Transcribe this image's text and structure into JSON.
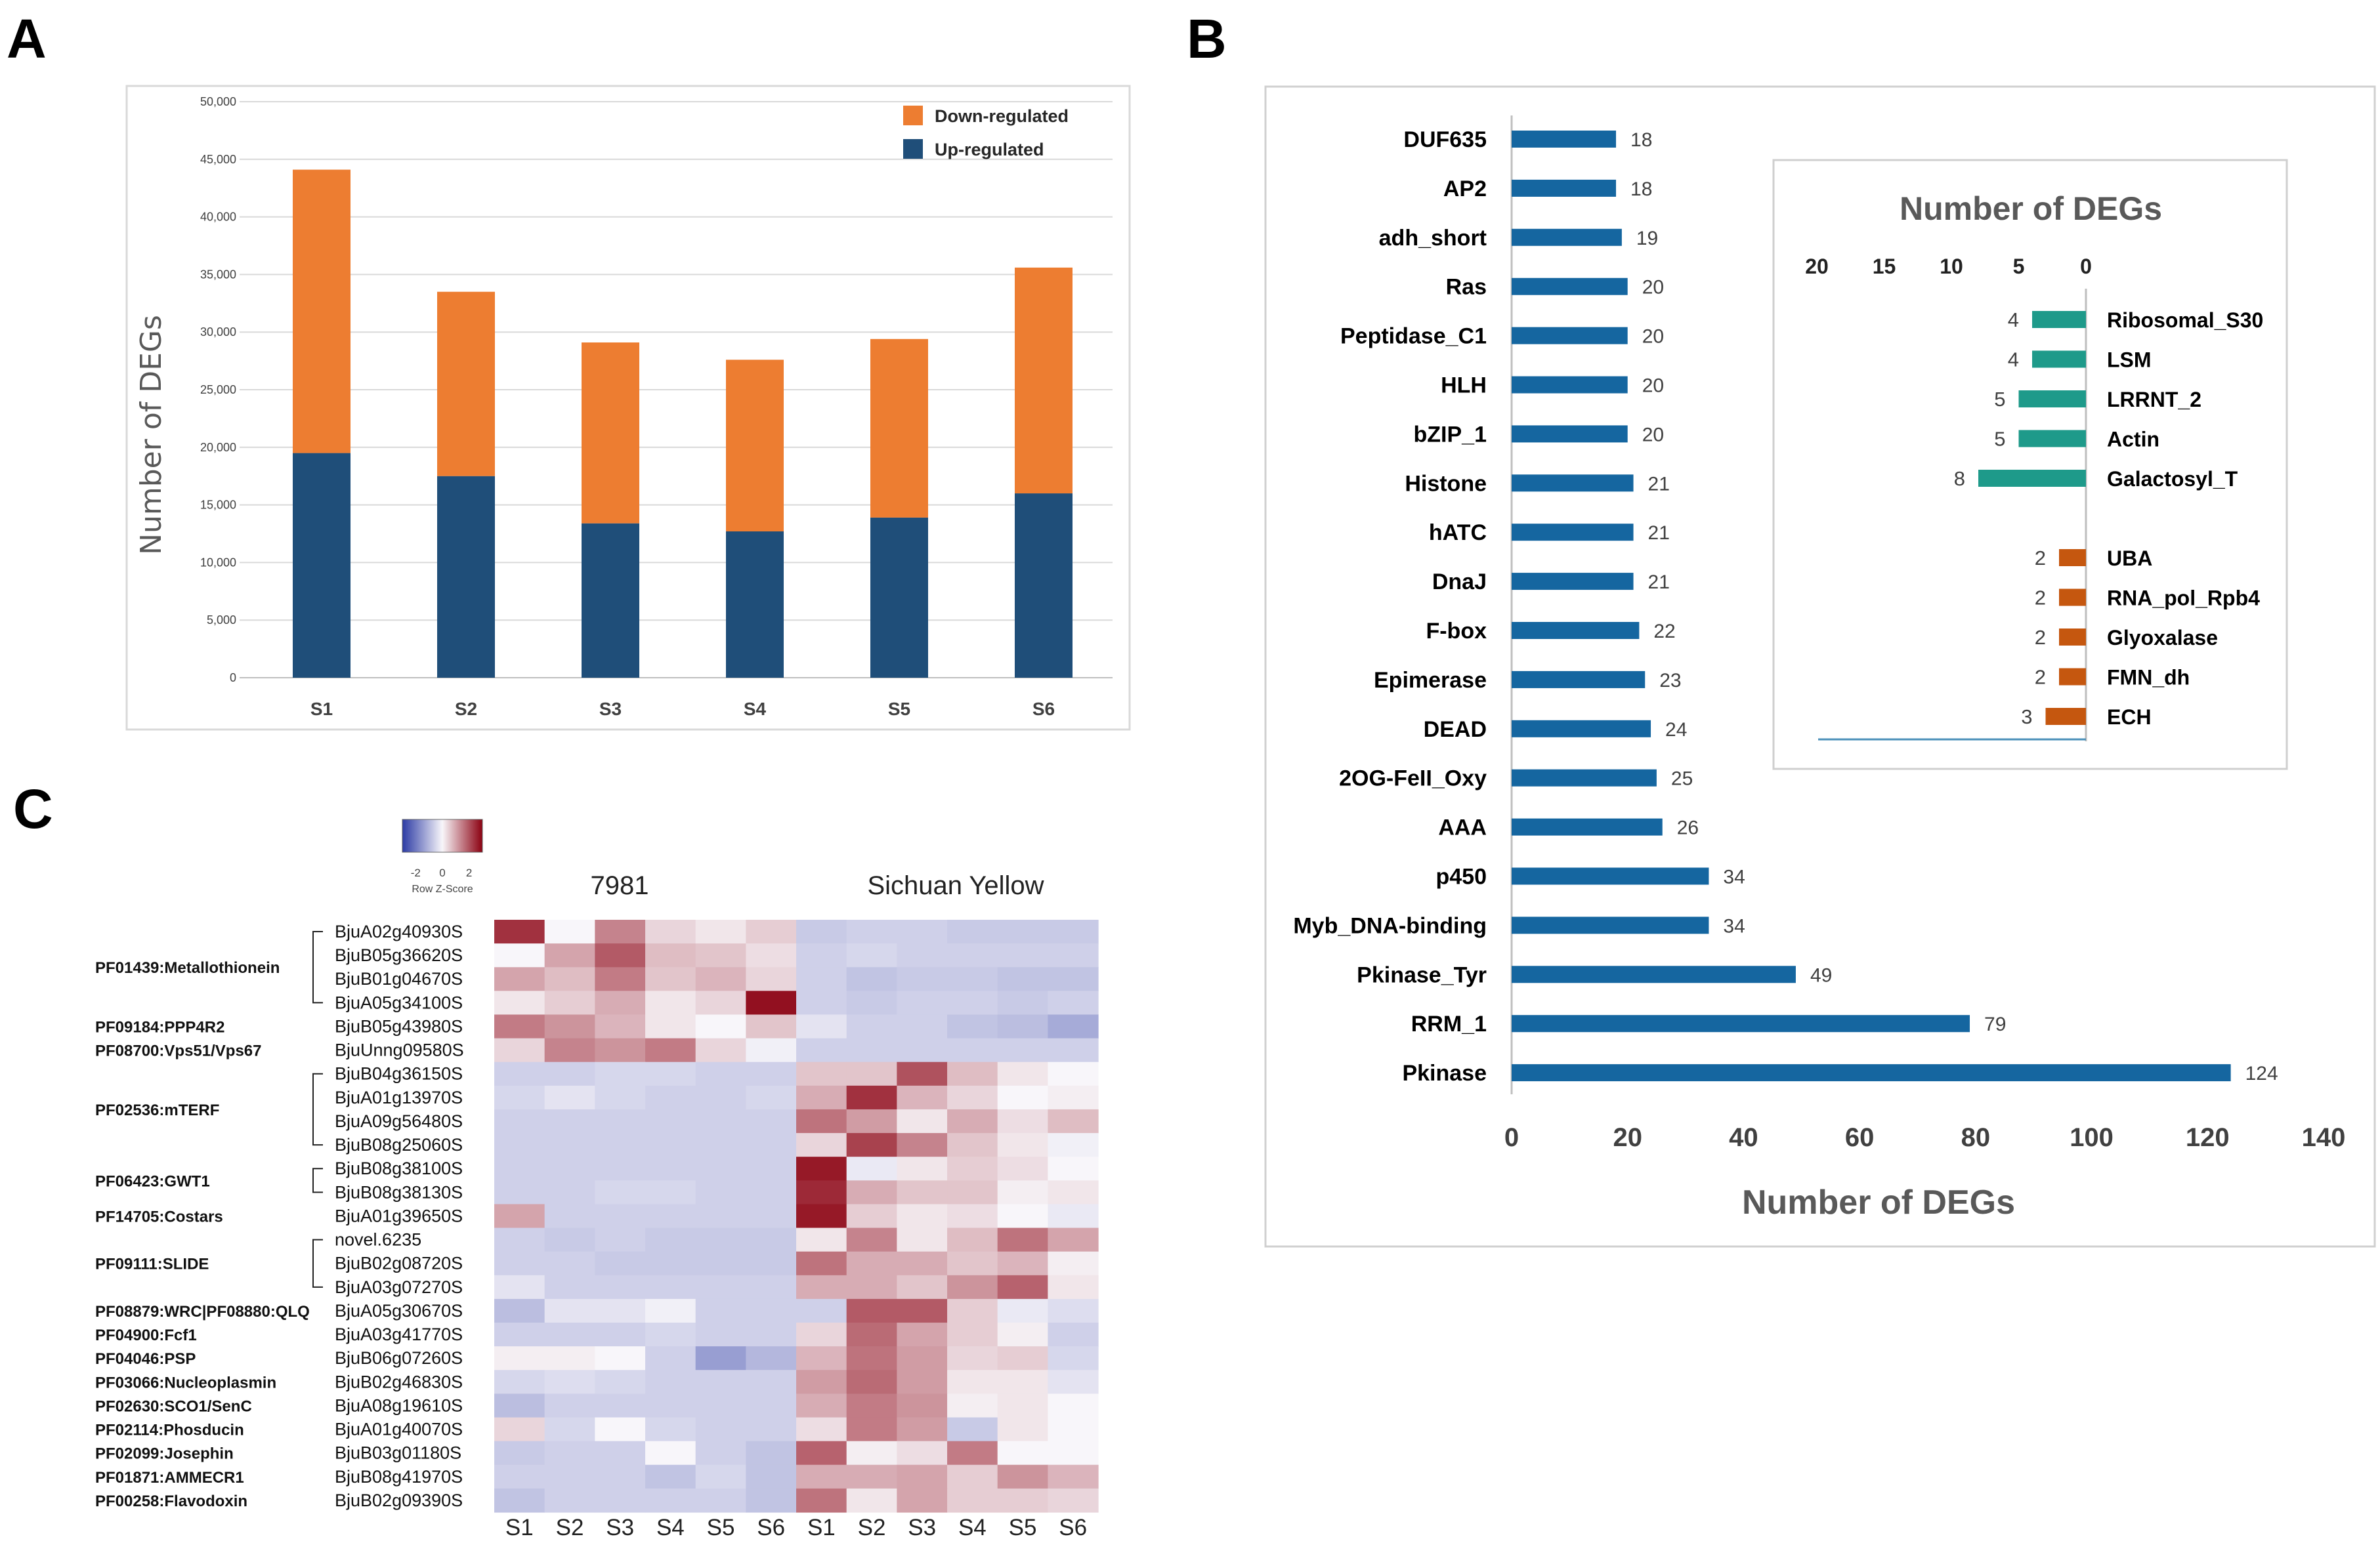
{
  "panels": {
    "a": "A",
    "b": "B",
    "c": "C"
  },
  "colors": {
    "down": "#ED7D31",
    "up": "#1F4E79",
    "b_bar": "#1566A0",
    "inset_up": "#1E9A8A",
    "inset_down": "#C5570F",
    "axis_text": "#404040",
    "grid": "#D9D9D9",
    "hm_low": "#2B3AA4",
    "hm_mid": "#F8F6FA",
    "hm_high": "#8B0010"
  },
  "chart_data": [
    {
      "id": "A",
      "type": "bar",
      "stacked": true,
      "title": "",
      "xlabel": "",
      "ylabel": "Number of DEGs",
      "categories": [
        "S1",
        "S2",
        "S3",
        "S4",
        "S5",
        "S6"
      ],
      "series": [
        {
          "name": "Up-regulated",
          "values": [
            19500,
            17500,
            13400,
            12700,
            13900,
            16000
          ]
        },
        {
          "name": "Down-regulated",
          "values": [
            24600,
            16000,
            15700,
            14900,
            15500,
            19600
          ]
        }
      ],
      "legend": [
        "Down-regulated",
        "Up-regulated"
      ],
      "legend_position": "top-right",
      "ylim": [
        0,
        50000
      ],
      "yticks": [
        "0",
        "5,000",
        "10,000",
        "15,000",
        "20,000",
        "25,000",
        "30,000",
        "35,000",
        "40,000",
        "45,000",
        "50,000"
      ],
      "grid": true
    },
    {
      "id": "B",
      "type": "bar",
      "orientation": "horizontal",
      "title": "",
      "xlabel": "Number of DEGs",
      "categories": [
        "DUF635",
        "AP2",
        "adh_short",
        "Ras",
        "Peptidase_C1",
        "HLH",
        "bZIP_1",
        "Histone",
        "hATC",
        "DnaJ",
        "F-box",
        "Epimerase",
        "DEAD",
        "2OG-FeII_Oxy",
        "AAA",
        "p450",
        "Myb_DNA-binding",
        "Pkinase_Tyr",
        "RRM_1",
        "Pkinase"
      ],
      "values": [
        18,
        18,
        19,
        20,
        20,
        20,
        20,
        21,
        21,
        21,
        22,
        23,
        24,
        25,
        26,
        34,
        34,
        49,
        79,
        124
      ],
      "value_labels": [
        "18",
        "18",
        "19",
        "20",
        "20",
        "20",
        "20",
        "21",
        "21",
        "21",
        "22",
        "23",
        "24",
        "25",
        "26",
        "34",
        "34",
        "49",
        "79",
        "124"
      ],
      "xlim": [
        0,
        140
      ],
      "xticks": [
        "0",
        "20",
        "40",
        "60",
        "80",
        "100",
        "120",
        "140"
      ],
      "grid": false
    },
    {
      "id": "B-inset",
      "type": "bar",
      "orientation": "horizontal",
      "reversed_x": true,
      "title": "Number of DEGs",
      "xlim": [
        0,
        20
      ],
      "xticks": [
        "20",
        "15",
        "10",
        "5",
        "0"
      ],
      "series": [
        {
          "name": "group1",
          "categories": [
            "Ribosomal_S30",
            "LSM",
            "LRRNT_2",
            "Actin",
            "Galactosyl_T"
          ],
          "values": [
            4,
            4,
            5,
            5,
            8
          ],
          "value_labels": [
            "4",
            "4",
            "5",
            "5",
            "8"
          ]
        },
        {
          "name": "group2",
          "categories": [
            "UBA",
            "RNA_pol_Rpb4",
            "Glyoxalase",
            "FMN_dh",
            "ECH"
          ],
          "values": [
            2,
            2,
            2,
            2,
            3
          ],
          "value_labels": [
            "2",
            "2",
            "2",
            "2",
            "3"
          ]
        }
      ]
    },
    {
      "id": "C",
      "type": "heatmap",
      "title": "",
      "color_key": {
        "ticks": [
          "-2",
          "0",
          "2"
        ],
        "label": "Row Z-Score"
      },
      "column_groups": [
        "7981",
        "Sichuan Yellow"
      ],
      "columns": [
        "S1",
        "S2",
        "S3",
        "S4",
        "S5",
        "S6",
        "S1",
        "S2",
        "S3",
        "S4",
        "S5",
        "S6"
      ],
      "rows": [
        "BjuA02g40930S",
        "BjuB05g36620S",
        "BjuB01g04670S",
        "BjuA05g34100S",
        "BjuB05g43980S",
        "BjuUnng09580S",
        "BjuB04g36150S",
        "BjuA01g13970S",
        "BjuA09g56480S",
        "BjuB08g25060S",
        "BjuB08g38100S",
        "BjuB08g38130S",
        "BjuA01g39650S",
        "novel.6235",
        "BjuB02g08720S",
        "BjuA03g07270S",
        "BjuA05g30670S",
        "BjuA03g41770S",
        "BjuB06g07260S",
        "BjuB02g46830S",
        "BjuA08g19610S",
        "BjuA01g40070S",
        "BjuB03g01180S",
        "BjuB08g41970S",
        "BjuB02g09390S"
      ],
      "families": [
        {
          "name": "PF01439:Metallothionein",
          "rows": [
            0,
            3
          ]
        },
        {
          "name": "PF09184:PPP4R2",
          "rows": [
            4,
            4
          ]
        },
        {
          "name": "PF08700:Vps51/Vps67",
          "rows": [
            5,
            5
          ]
        },
        {
          "name": "PF02536:mTERF",
          "rows": [
            6,
            9
          ]
        },
        {
          "name": "PF06423:GWT1",
          "rows": [
            10,
            11
          ]
        },
        {
          "name": "PF14705:Costars",
          "rows": [
            12,
            12
          ]
        },
        {
          "name": "PF09111:SLIDE",
          "rows": [
            13,
            15
          ]
        },
        {
          "name": "PF08879:WRC|PF08880:QLQ",
          "rows": [
            16,
            16
          ]
        },
        {
          "name": "PF04900:Fcf1",
          "rows": [
            17,
            17
          ]
        },
        {
          "name": "PF04046:PSP",
          "rows": [
            18,
            18
          ]
        },
        {
          "name": "PF03066:Nucleoplasmin",
          "rows": [
            19,
            19
          ]
        },
        {
          "name": "PF02630:SCO1/SenC",
          "rows": [
            20,
            20
          ]
        },
        {
          "name": "PF02114:Phosducin",
          "rows": [
            21,
            21
          ]
        },
        {
          "name": "PF02099:Josephin",
          "rows": [
            22,
            22
          ]
        },
        {
          "name": "PF01871:AMMECR1",
          "rows": [
            23,
            23
          ]
        },
        {
          "name": "PF00258:Flavodoxin",
          "rows": [
            24,
            24
          ]
        }
      ],
      "values": [
        [
          2.4,
          0.0,
          1.4,
          0.4,
          0.2,
          0.5,
          -0.7,
          -0.6,
          -0.6,
          -0.7,
          -0.7,
          -0.7
        ],
        [
          0.0,
          1.0,
          1.9,
          0.7,
          0.6,
          0.3,
          -0.6,
          -0.5,
          -0.6,
          -0.6,
          -0.6,
          -0.6
        ],
        [
          1.0,
          0.7,
          1.5,
          0.6,
          0.8,
          0.4,
          -0.6,
          -0.8,
          -0.7,
          -0.7,
          -0.8,
          -0.8
        ],
        [
          0.2,
          0.5,
          0.9,
          0.2,
          0.4,
          2.8,
          -0.6,
          -0.7,
          -0.6,
          -0.6,
          -0.7,
          -0.6
        ],
        [
          1.5,
          1.2,
          0.8,
          0.2,
          0.0,
          0.6,
          -0.3,
          -0.6,
          -0.6,
          -0.8,
          -0.9,
          -1.2
        ],
        [
          0.4,
          1.4,
          1.2,
          1.5,
          0.4,
          -0.1,
          -0.6,
          -0.6,
          -0.6,
          -0.6,
          -0.6,
          -0.6
        ],
        [
          -0.6,
          -0.6,
          -0.5,
          -0.5,
          -0.6,
          -0.6,
          0.6,
          0.6,
          2.0,
          0.7,
          0.2,
          0.0
        ],
        [
          -0.5,
          -0.3,
          -0.5,
          -0.6,
          -0.6,
          -0.5,
          0.9,
          2.4,
          0.8,
          0.4,
          0.0,
          0.1
        ],
        [
          -0.6,
          -0.6,
          -0.6,
          -0.6,
          -0.6,
          -0.6,
          1.6,
          1.1,
          0.2,
          0.9,
          0.3,
          0.7
        ],
        [
          -0.6,
          -0.6,
          -0.6,
          -0.6,
          -0.6,
          -0.6,
          0.4,
          2.2,
          1.4,
          0.6,
          0.2,
          -0.1
        ],
        [
          -0.6,
          -0.6,
          -0.6,
          -0.6,
          -0.6,
          -0.6,
          2.7,
          -0.2,
          0.2,
          0.5,
          0.3,
          0.0
        ],
        [
          -0.6,
          -0.6,
          -0.5,
          -0.5,
          -0.6,
          -0.6,
          2.5,
          0.9,
          0.6,
          0.6,
          0.1,
          0.2
        ],
        [
          1.0,
          -0.6,
          -0.6,
          -0.6,
          -0.6,
          -0.6,
          2.7,
          0.5,
          0.2,
          0.3,
          0.0,
          -0.2
        ],
        [
          -0.6,
          -0.7,
          -0.6,
          -0.7,
          -0.7,
          -0.7,
          0.2,
          1.4,
          0.2,
          0.7,
          1.6,
          1.0
        ],
        [
          -0.6,
          -0.6,
          -0.7,
          -0.7,
          -0.7,
          -0.7,
          1.6,
          0.9,
          0.9,
          0.6,
          0.8,
          0.1
        ],
        [
          -0.3,
          -0.6,
          -0.6,
          -0.6,
          -0.6,
          -0.6,
          0.9,
          0.9,
          0.6,
          1.2,
          1.8,
          0.2
        ],
        [
          -0.9,
          -0.3,
          -0.3,
          -0.1,
          -0.6,
          -0.6,
          -0.6,
          1.9,
          1.9,
          0.5,
          -0.2,
          -0.4
        ],
        [
          -0.6,
          -0.6,
          -0.6,
          -0.5,
          -0.6,
          -0.6,
          0.4,
          1.7,
          1.0,
          0.5,
          0.1,
          -0.6
        ],
        [
          0.1,
          0.1,
          0.0,
          -0.6,
          -1.4,
          -1.0,
          0.8,
          1.6,
          1.1,
          0.4,
          0.5,
          -0.5
        ],
        [
          -0.5,
          -0.4,
          -0.5,
          -0.6,
          -0.6,
          -0.6,
          1.1,
          1.7,
          1.1,
          0.2,
          0.2,
          -0.3
        ],
        [
          -0.9,
          -0.6,
          -0.6,
          -0.6,
          -0.6,
          -0.6,
          0.9,
          1.5,
          1.2,
          0.1,
          0.2,
          0.0
        ],
        [
          0.4,
          -0.5,
          0.0,
          -0.5,
          -0.6,
          -0.6,
          0.3,
          1.5,
          1.1,
          -0.7,
          0.2,
          0.0
        ],
        [
          -0.7,
          -0.6,
          -0.6,
          0.0,
          -0.6,
          -0.8,
          1.8,
          0.1,
          0.3,
          1.5,
          0.0,
          0.0
        ],
        [
          -0.6,
          -0.6,
          -0.6,
          -0.8,
          -0.5,
          -0.8,
          0.9,
          0.9,
          1.0,
          0.5,
          1.2,
          0.8
        ],
        [
          -0.8,
          -0.6,
          -0.6,
          -0.6,
          -0.6,
          -0.8,
          1.6,
          0.2,
          1.0,
          0.5,
          0.5,
          0.4
        ]
      ]
    }
  ]
}
